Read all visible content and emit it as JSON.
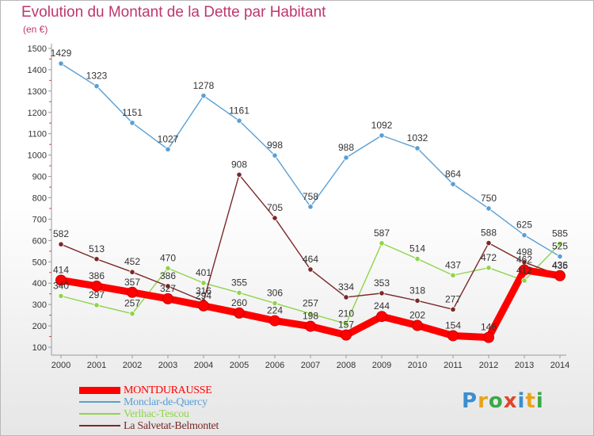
{
  "header": {
    "title": "Evolution du Montant de la Dette par Habitant",
    "unit": "(en €)"
  },
  "brand": {
    "text": "Proxiti",
    "letters": [
      "P",
      "r",
      "o",
      "x",
      "i",
      "t",
      "i"
    ],
    "colors": [
      "#3a8fd0",
      "#e8a31c",
      "#39a845",
      "#e0452b",
      "#3a8fd0",
      "#e8a31c",
      "#39a845"
    ]
  },
  "chart_data": {
    "type": "line",
    "title": "Evolution du Montant de la Dette par Habitant",
    "subtitle": "(en €)",
    "x": [
      "2000",
      "2001",
      "2002",
      "2003",
      "2004",
      "2005",
      "2006",
      "2007",
      "2008",
      "2009",
      "2010",
      "2011",
      "2012",
      "2013",
      "2014"
    ],
    "ylim": [
      100,
      1500
    ],
    "yticks": [
      100,
      200,
      300,
      400,
      500,
      600,
      700,
      800,
      900,
      1000,
      1100,
      1200,
      1300,
      1400,
      1500
    ],
    "grid": false,
    "legend_position": "bottom-left",
    "series": [
      {
        "name": "MONTDURAUSSE",
        "color": "#ff0000",
        "emphasis": true,
        "values": [
          414,
          386,
          357,
          327,
          294,
          260,
          224,
          198,
          157,
          244,
          202,
          154,
          146,
          462,
          435
        ],
        "labels": [
          "414",
          "386",
          "357",
          "327",
          "294",
          "260",
          "224",
          "198",
          "157",
          "244",
          "202",
          "154",
          "146",
          "462",
          "435"
        ]
      },
      {
        "name": "Monclar-de-Quercy",
        "color": "#5a9fd4",
        "emphasis": false,
        "values": [
          1429,
          1323,
          1151,
          1027,
          1278,
          1161,
          998,
          758,
          988,
          1092,
          1032,
          864,
          750,
          625,
          525
        ],
        "labels": [
          "1429",
          "1323",
          "1151",
          "1027",
          "1278",
          "1161",
          "998",
          "758",
          "988",
          "1092",
          "1032",
          "864",
          "750",
          "625",
          "525"
        ]
      },
      {
        "name": "Verlhac-Tescou",
        "color": "#8ed44a",
        "emphasis": false,
        "values": [
          340,
          297,
          257,
          470,
          401,
          355,
          306,
          257,
          210,
          587,
          514,
          437,
          472,
          412,
          585
        ],
        "labels": [
          "340",
          "297",
          "257",
          "470",
          "401",
          "355",
          "306",
          "257",
          "210",
          "587",
          "514",
          "437",
          "472",
          "412",
          "585"
        ]
      },
      {
        "name": "La Salvetat-Belmontet",
        "color": "#7a2828",
        "emphasis": false,
        "values": [
          582,
          513,
          452,
          386,
          316,
          908,
          705,
          464,
          334,
          353,
          318,
          277,
          588,
          498,
          436
        ],
        "labels": [
          "582",
          "513",
          "452",
          "386",
          "316",
          "908",
          "705",
          "464",
          "334",
          "353",
          "318",
          "277",
          "588",
          "498",
          "436"
        ]
      }
    ]
  }
}
